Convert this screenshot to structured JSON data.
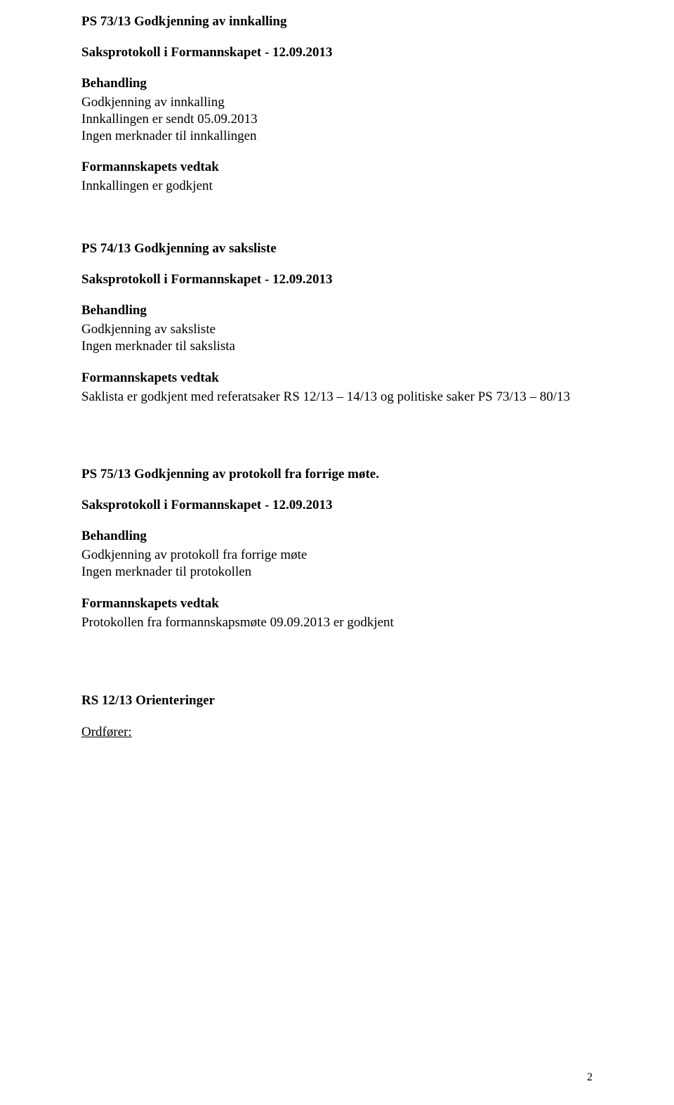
{
  "sections": [
    {
      "heading": "PS 73/13 Godkjenning av innkalling",
      "protocol": "Saksprotokoll i Formannskapet - 12.09.2013",
      "behandling_label": "Behandling",
      "behandling_text": "Godkjenning av innkalling\nInnkallingen er sendt 05.09.2013\nIngen merknader til innkallingen",
      "vedtak_label": "Formannskapets vedtak",
      "vedtak_text": "Innkallingen er godkjent"
    },
    {
      "heading": "PS 74/13 Godkjenning av saksliste",
      "protocol": "Saksprotokoll i Formannskapet - 12.09.2013",
      "behandling_label": "Behandling",
      "behandling_text": "Godkjenning av saksliste\nIngen merknader til sakslista",
      "vedtak_label": "Formannskapets vedtak",
      "vedtak_text": "Saklista er godkjent med referatsaker RS 12/13 – 14/13 og politiske saker PS 73/13 – 80/13"
    },
    {
      "heading": "PS 75/13 Godkjenning av protokoll fra forrige møte.",
      "protocol": "Saksprotokoll i Formannskapet - 12.09.2013",
      "behandling_label": "Behandling",
      "behandling_text": "Godkjenning av protokoll fra forrige møte\nIngen merknader til protokollen",
      "vedtak_label": "Formannskapets vedtak",
      "vedtak_text": "Protokollen fra formannskapsmøte 09.09.2013 er godkjent"
    }
  ],
  "rs_heading": "RS 12/13 Orienteringer",
  "ordforer_label": "Ordfører:",
  "page_number": "2"
}
